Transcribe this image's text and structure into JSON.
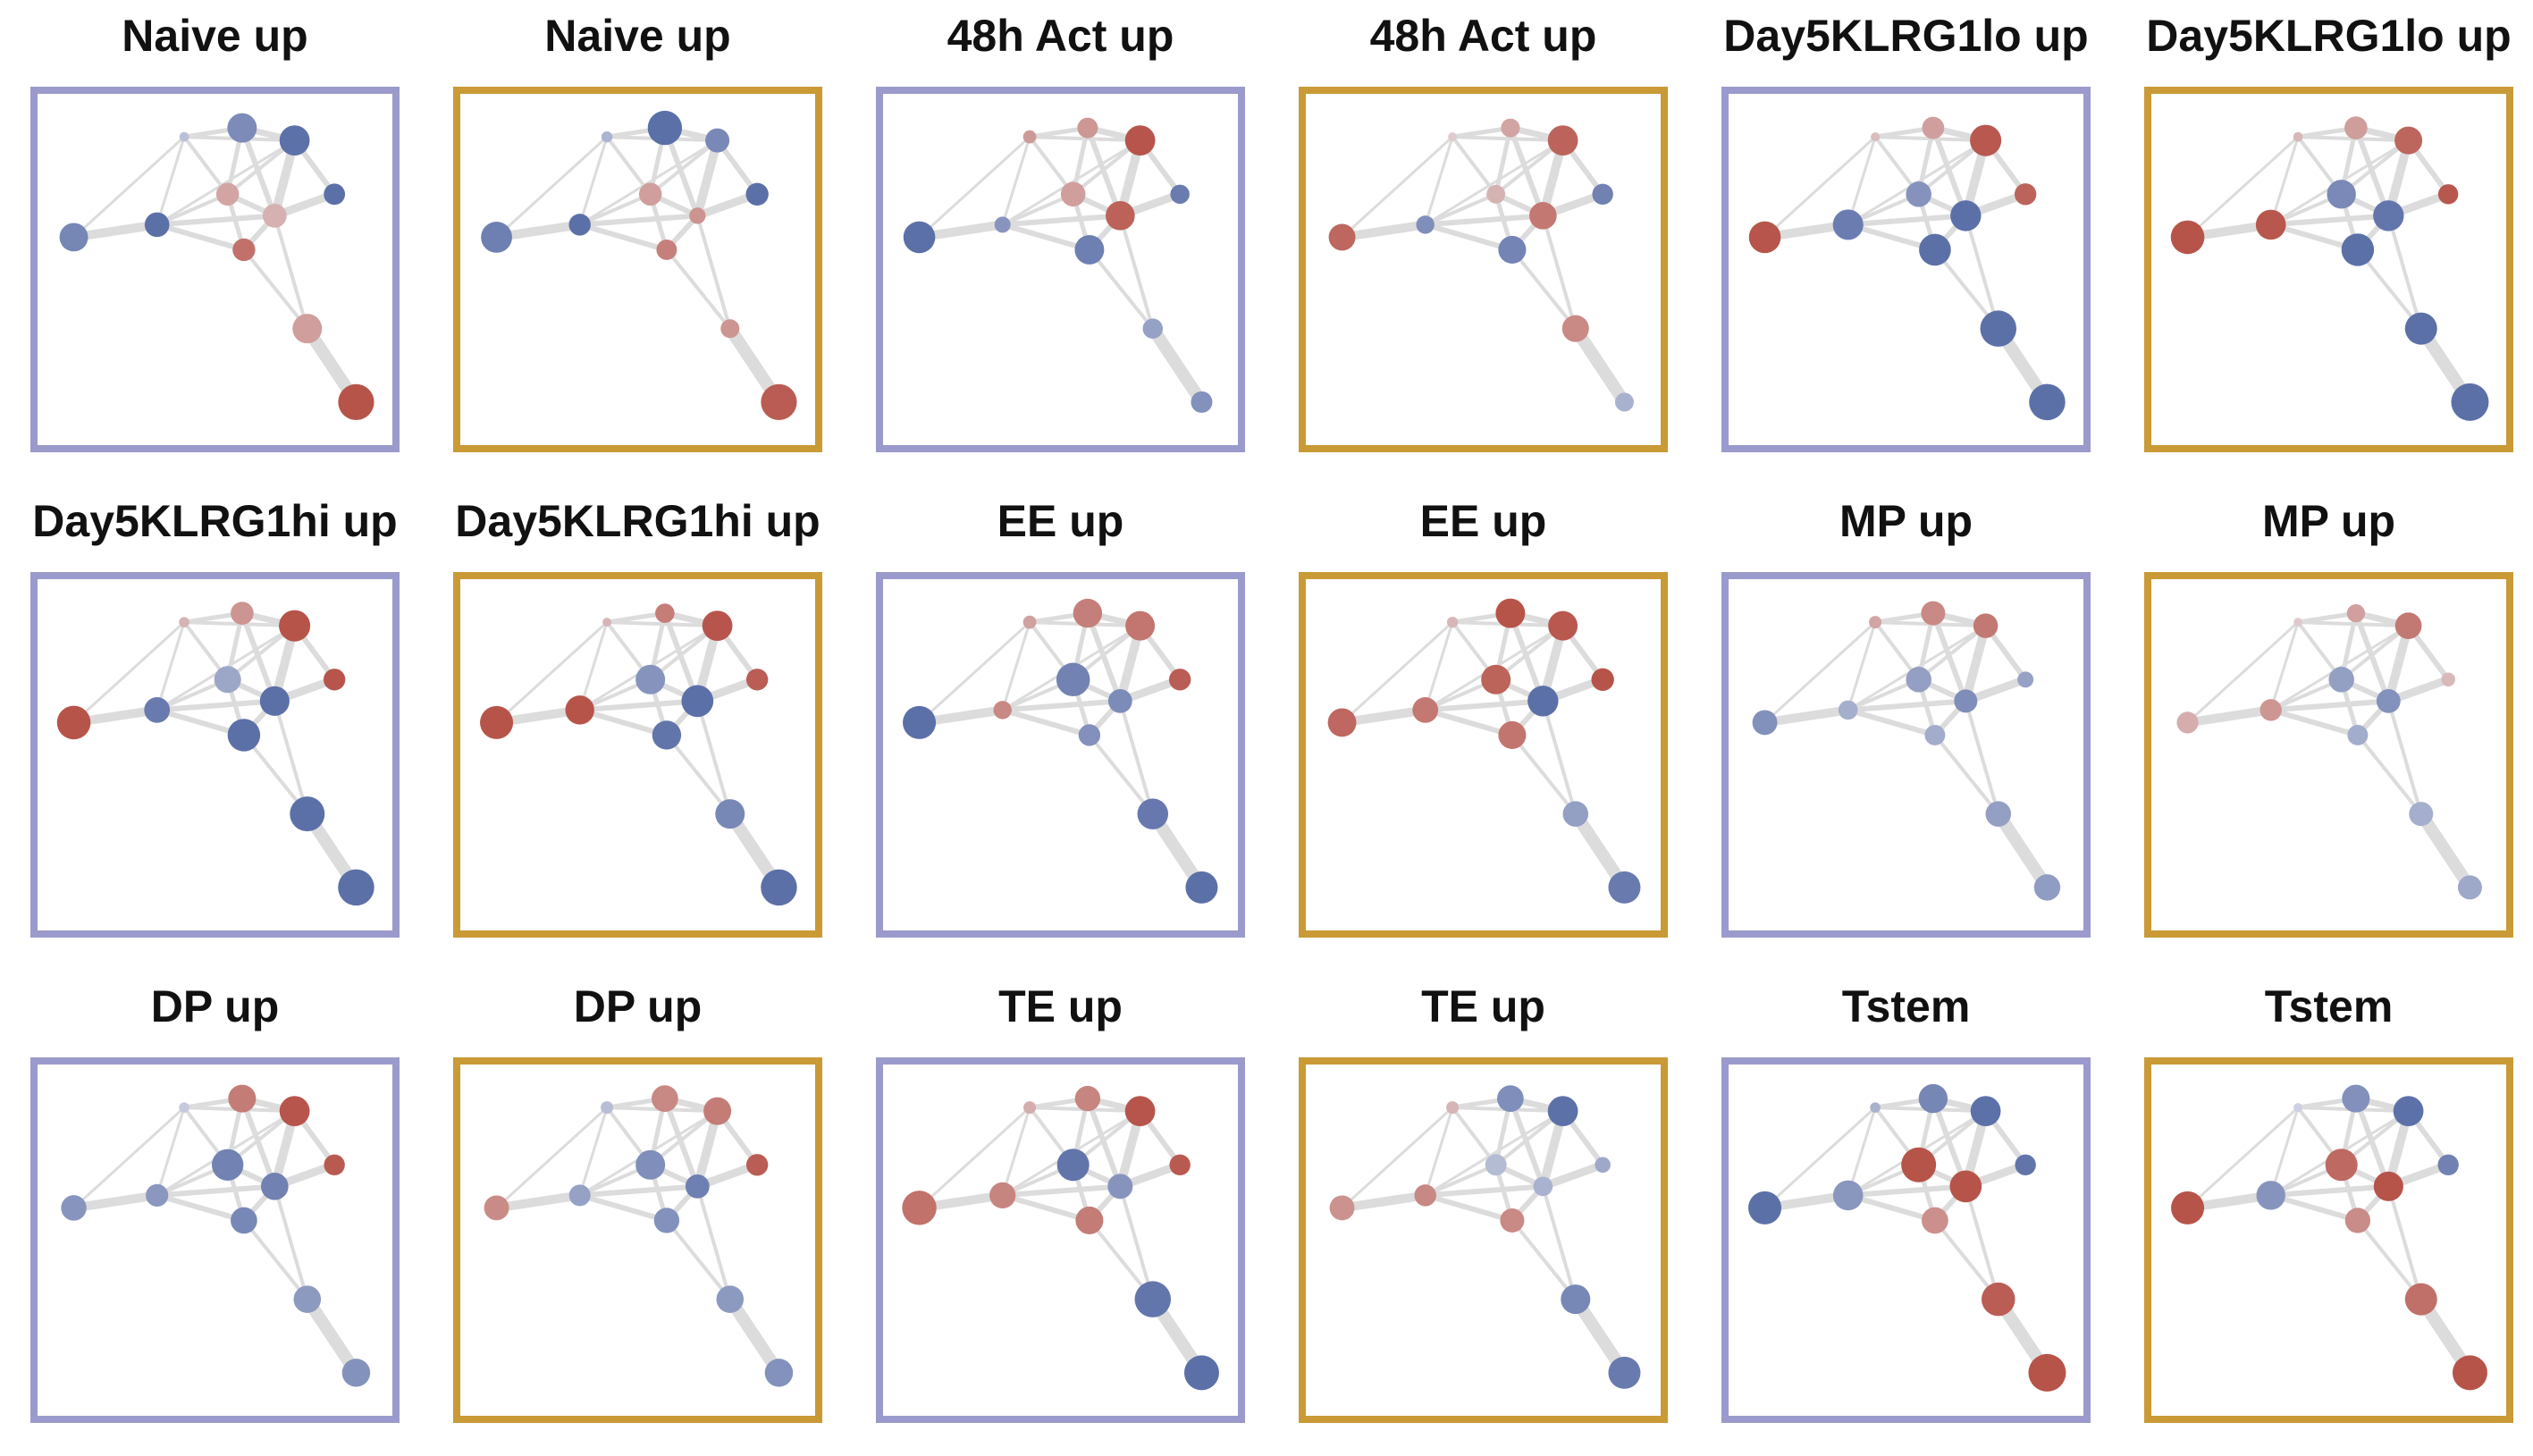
{
  "colors": {
    "frame_a": "#9a9acc",
    "frame_b": "#c99a35",
    "edge": "#dcdcdc"
  },
  "panels": [
    {
      "title": "Naive up",
      "frame": "a",
      "nodes": [
        [
          0.3,
          0.05
        ],
        [
          0.4,
          0.62
        ],
        [
          0.6,
          0.65
        ],
        [
          0.65,
          0.62
        ],
        [
          0.3,
          0.25
        ],
        [
          0.1,
          0.45
        ],
        [
          0.6,
          0.34
        ],
        [
          0.9,
          0.55
        ],
        [
          0.5,
          0.52
        ],
        [
          0.2,
          0.5
        ],
        [
          0.65,
          0.74
        ]
      ]
    },
    {
      "title": "Naive up",
      "frame": "b",
      "nodes": [
        [
          0.35,
          0.15
        ],
        [
          0.6,
          0.82
        ],
        [
          0.55,
          0.4
        ],
        [
          0.6,
          0.7
        ],
        [
          0.35,
          0.25
        ],
        [
          0.5,
          0.12
        ],
        [
          0.55,
          0.25
        ],
        [
          0.9,
          0.42
        ],
        [
          0.5,
          0.62
        ],
        [
          0.5,
          0.1
        ],
        [
          0.5,
          0.74
        ]
      ]
    },
    {
      "title": "48h Act up",
      "frame": "a",
      "nodes": [
        [
          0.35,
          0.3
        ],
        [
          0.4,
          0.25
        ],
        [
          0.6,
          0.65
        ],
        [
          0.6,
          0.5
        ],
        [
          0.3,
          0.32
        ],
        [
          0.5,
          0.68
        ],
        [
          0.5,
          0.62
        ],
        [
          0.6,
          0.15
        ],
        [
          0.7,
          0.65
        ],
        [
          0.5,
          0.15
        ],
        [
          0.6,
          0.2
        ]
      ]
    },
    {
      "title": "48h Act up",
      "frame": "b",
      "nodes": [
        [
          0.2,
          0.0
        ],
        [
          0.35,
          0.18
        ],
        [
          0.5,
          0.65
        ],
        [
          0.5,
          0.6
        ],
        [
          0.3,
          0.1
        ],
        [
          0.4,
          0.6
        ],
        [
          0.5,
          0.55
        ],
        [
          0.6,
          0.25
        ],
        [
          0.6,
          0.45
        ],
        [
          0.4,
          0.4
        ],
        [
          0.4,
          0.1
        ]
      ]
    },
    {
      "title": "Day5KLRG1lo up",
      "frame": "a",
      "nodes": [
        [
          0.3,
          0.0
        ],
        [
          0.3,
          0.32
        ],
        [
          0.55,
          0.7
        ],
        [
          0.5,
          0.65
        ],
        [
          0.5,
          0.35
        ],
        [
          0.85,
          0.75
        ],
        [
          0.6,
          0.72
        ],
        [
          0.4,
          0.82
        ],
        [
          0.6,
          0.65
        ],
        [
          0.75,
          0.75
        ],
        [
          0.8,
          0.75
        ]
      ]
    },
    {
      "title": "Day5KLRG1lo up",
      "frame": "b",
      "nodes": [
        [
          0.3,
          0.05
        ],
        [
          0.3,
          0.35
        ],
        [
          0.55,
          0.55
        ],
        [
          0.65,
          0.55
        ],
        [
          0.5,
          0.48
        ],
        [
          0.5,
          0.75
        ],
        [
          0.55,
          0.75
        ],
        [
          0.5,
          0.8
        ],
        [
          0.65,
          0.72
        ],
        [
          0.65,
          0.6
        ],
        [
          0.8,
          0.8
        ]
      ]
    },
    {
      "title": "Day5KLRG1hi up",
      "frame": "a",
      "nodes": [
        [
          0.3,
          0.1
        ],
        [
          0.35,
          0.35
        ],
        [
          0.6,
          0.7
        ],
        [
          0.6,
          0.65
        ],
        [
          0.3,
          0.4
        ],
        [
          0.8,
          0.7
        ],
        [
          0.55,
          0.75
        ],
        [
          0.55,
          0.6
        ],
        [
          0.7,
          0.72
        ],
        [
          0.65,
          0.7
        ],
        [
          0.9,
          0.75
        ]
      ]
    },
    {
      "title": "Day5KLRG1hi up",
      "frame": "b",
      "nodes": [
        [
          0.35,
          0.0
        ],
        [
          0.6,
          0.2
        ],
        [
          0.6,
          0.65
        ],
        [
          0.55,
          0.65
        ],
        [
          0.4,
          0.5
        ],
        [
          0.6,
          0.8
        ],
        [
          0.6,
          0.6
        ],
        [
          0.7,
          0.75
        ],
        [
          0.65,
          0.7
        ],
        [
          0.5,
          0.5
        ],
        [
          0.75,
          0.75
        ]
      ]
    },
    {
      "title": "EE up",
      "frame": "a",
      "nodes": [
        [
          0.3,
          0.3
        ],
        [
          0.35,
          0.6
        ],
        [
          0.4,
          0.62
        ],
        [
          0.55,
          0.65
        ],
        [
          0.45,
          0.65
        ],
        [
          0.5,
          0.45
        ],
        [
          0.55,
          0.3
        ],
        [
          0.5,
          0.25
        ],
        [
          0.6,
          0.7
        ],
        [
          0.6,
          0.55
        ],
        [
          0.7,
          0.6
        ]
      ]
    },
    {
      "title": "EE up",
      "frame": "b",
      "nodes": [
        [
          0.25,
          0.15
        ],
        [
          0.7,
          0.62
        ],
        [
          0.6,
          0.62
        ],
        [
          0.7,
          0.7
        ],
        [
          0.6,
          0.5
        ],
        [
          0.65,
          0.75
        ],
        [
          0.45,
          0.55
        ],
        [
          0.4,
          0.6
        ],
        [
          0.55,
          0.52
        ],
        [
          0.4,
          0.35
        ],
        [
          0.55,
          0.6
        ]
      ]
    },
    {
      "title": "MP up",
      "frame": "a",
      "nodes": [
        [
          0.3,
          0.25
        ],
        [
          0.4,
          0.4
        ],
        [
          0.5,
          0.42
        ],
        [
          0.4,
          0.32
        ],
        [
          0.4,
          0.35
        ],
        [
          0.5,
          0.42
        ],
        [
          0.35,
          0.25
        ],
        [
          0.3,
          0.3
        ],
        [
          0.5,
          0.38
        ],
        [
          0.4,
          0.35
        ],
        [
          0.4,
          0.38
        ]
      ]
    },
    {
      "title": "MP up",
      "frame": "b",
      "nodes": [
        [
          0.2,
          0.0
        ],
        [
          0.4,
          0.15
        ],
        [
          0.45,
          0.5
        ],
        [
          0.2,
          0.2
        ],
        [
          0.4,
          0.35
        ],
        [
          0.45,
          0.45
        ],
        [
          0.35,
          0.25
        ],
        [
          0.3,
          0.42
        ],
        [
          0.25,
          0.25
        ],
        [
          0.3,
          0.3
        ],
        [
          0.35,
          0.3
        ]
      ]
    },
    {
      "title": "DP up",
      "frame": "a",
      "nodes": [
        [
          0.2,
          0.1
        ],
        [
          0.4,
          0.55
        ],
        [
          0.6,
          0.65
        ],
        [
          0.6,
          0.6
        ],
        [
          0.5,
          0.58
        ],
        [
          0.5,
          0.6
        ],
        [
          0.5,
          0.5
        ],
        [
          0.4,
          0.45
        ],
        [
          0.45,
          0.4
        ],
        [
          0.4,
          0.42
        ],
        [
          0.45,
          0.45
        ]
      ]
    },
    {
      "title": "DP up",
      "frame": "b",
      "nodes": [
        [
          0.2,
          0.25
        ],
        [
          0.35,
          0.5
        ],
        [
          0.4,
          0.55
        ],
        [
          0.55,
          0.65
        ],
        [
          0.45,
          0.5
        ],
        [
          0.6,
          0.45
        ],
        [
          0.45,
          0.45
        ],
        [
          0.35,
          0.4
        ],
        [
          0.4,
          0.38
        ],
        [
          0.4,
          0.42
        ],
        [
          0.45,
          0.45
        ]
      ]
    },
    {
      "title": "TE up",
      "frame": "a",
      "nodes": [
        [
          0.25,
          0.25
        ],
        [
          0.4,
          0.45
        ],
        [
          0.6,
          0.65
        ],
        [
          0.6,
          0.6
        ],
        [
          0.6,
          0.6
        ],
        [
          0.4,
          0.5
        ],
        [
          0.4,
          0.55
        ],
        [
          0.3,
          0.62
        ],
        [
          0.35,
          0.75
        ],
        [
          0.5,
          0.75
        ],
        [
          0.65,
          0.7
        ]
      ]
    },
    {
      "title": "TE up",
      "frame": "b",
      "nodes": [
        [
          0.2,
          0.25
        ],
        [
          0.45,
          0.5
        ],
        [
          0.6,
          0.65
        ],
        [
          0.35,
          0.3
        ],
        [
          0.25,
          0.2
        ],
        [
          0.3,
          0.25
        ],
        [
          0.4,
          0.4
        ],
        [
          0.4,
          0.42
        ],
        [
          0.35,
          0.38
        ],
        [
          0.5,
          0.5
        ],
        [
          0.55,
          0.6
        ]
      ]
    },
    {
      "title": "Tstem",
      "frame": "a",
      "nodes": [
        [
          0.4,
          0.1
        ],
        [
          0.45,
          0.6
        ],
        [
          0.6,
          0.65
        ],
        [
          0.6,
          0.6
        ],
        [
          0.6,
          0.7
        ],
        [
          0.6,
          0.8
        ],
        [
          0.3,
          0.5
        ],
        [
          0.2,
          0.8
        ],
        [
          0.65,
          0.7
        ],
        [
          0.55,
          0.65
        ],
        [
          0.7,
          0.8
        ]
      ]
    },
    {
      "title": "Tstem",
      "frame": "b",
      "nodes": [
        [
          0.2,
          0.0
        ],
        [
          0.4,
          0.55
        ],
        [
          0.6,
          0.65
        ],
        [
          0.5,
          0.6
        ],
        [
          0.5,
          0.6
        ],
        [
          0.6,
          0.7
        ],
        [
          0.35,
          0.45
        ],
        [
          0.25,
          0.75
        ],
        [
          0.6,
          0.7
        ],
        [
          0.45,
          0.6
        ],
        [
          0.65,
          0.7
        ]
      ]
    }
  ]
}
